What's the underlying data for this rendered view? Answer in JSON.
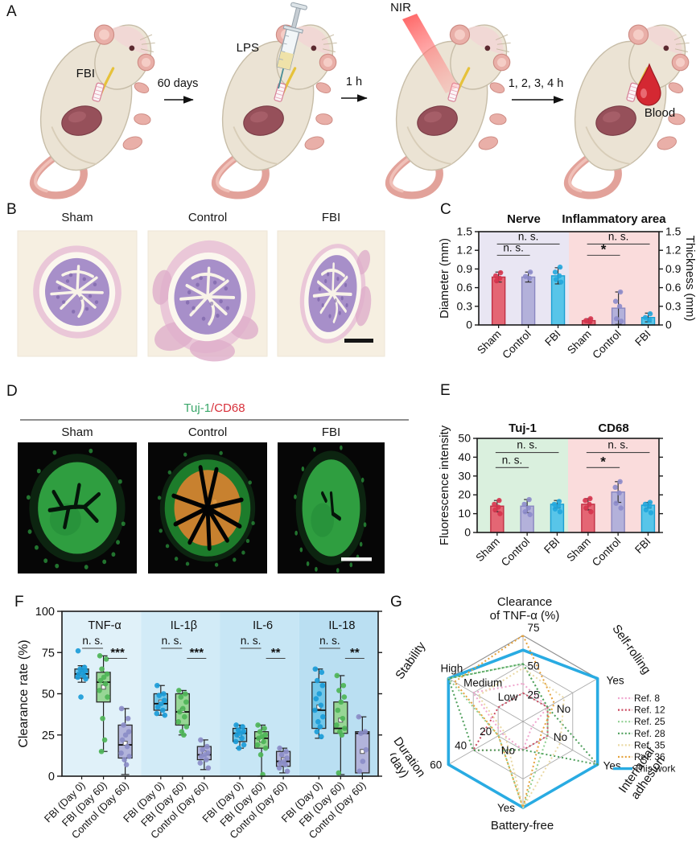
{
  "panelA": {
    "label": "A",
    "device_label": "FBI",
    "injection_label": "LPS",
    "laser_label": "NIR",
    "blood_label": "Blood",
    "arrow_labels": [
      "60 days",
      "1 h",
      "1, 2, 3, 4 h"
    ]
  },
  "panelB": {
    "label": "B",
    "image_titles": [
      "Sham",
      "Control",
      "FBI"
    ]
  },
  "panelD": {
    "label": "D",
    "title_green": "Tuj-1",
    "title_red": "/CD68",
    "image_titles": [
      "Sham",
      "Control",
      "FBI"
    ]
  },
  "panelC_label": "C",
  "panelE_label": "E",
  "panelF_label": "F",
  "panelG_label": "G",
  "chart_data": [
    {
      "id": "panelC",
      "type": "bar",
      "ylabel_left": "Diameter (mm)",
      "ylabel_right": "Thickness (mm)",
      "ylim": [
        0,
        1.5
      ],
      "yticks": [
        "0",
        "0.3",
        "0.6",
        "0.9",
        "1.2",
        "1.5"
      ],
      "bar_fill": [
        "#e46674",
        "#b3b1da",
        "#58c5e9"
      ],
      "bar_edge": [
        "#c02f44",
        "#8a87c0",
        "#1b9fd2"
      ],
      "dot_color": [
        "#d6334d",
        "#8d8ccb",
        "#22a6dd"
      ],
      "sig_y": [
        1.12,
        1.3
      ],
      "groups": [
        {
          "title": "Nerve",
          "title_color": "#b93fe0",
          "bg": "#e9e6f3",
          "categories": [
            "Sham",
            "Control",
            "FBI"
          ],
          "values": [
            0.77,
            0.77,
            0.79
          ],
          "errors": [
            0.08,
            0.08,
            0.13
          ],
          "points": [
            [
              0.84,
              0.79,
              0.75,
              0.71
            ],
            [
              0.85,
              0.78,
              0.75
            ],
            [
              0.93,
              0.85,
              0.79,
              0.73,
              0.69
            ]
          ],
          "sig": [
            {
              "a": 0,
              "b": 1,
              "label": "n. s."
            },
            {
              "a": 0,
              "b": 2,
              "label": "n. s."
            }
          ]
        },
        {
          "title": "Inflammatory area",
          "title_color": "#e23340",
          "bg": "#fadcdc",
          "categories": [
            "Sham",
            "Control",
            "FBI"
          ],
          "values": [
            0.07,
            0.27,
            0.12
          ],
          "errors": [
            0.03,
            0.26,
            0.07
          ],
          "points": [
            [
              0.1,
              0.07,
              0.05
            ],
            [
              0.53,
              0.38,
              0.3,
              0.1,
              0.06
            ],
            [
              0.18,
              0.12,
              0.08
            ]
          ],
          "sig": [
            {
              "a": 0,
              "b": 1,
              "label": "*"
            },
            {
              "a": 0,
              "b": 2,
              "label": "n. s."
            }
          ]
        }
      ]
    },
    {
      "id": "panelE",
      "type": "bar",
      "ylabel_left": "Fluorescence intensity",
      "ylim": [
        0,
        50
      ],
      "yticks": [
        "0",
        "10",
        "20",
        "30",
        "40",
        "50"
      ],
      "bar_fill": [
        "#e46674",
        "#b3b1da",
        "#58c5e9"
      ],
      "bar_edge": [
        "#c02f44",
        "#8a87c0",
        "#1b9fd2"
      ],
      "dot_color": [
        "#d6334d",
        "#8d8ccb",
        "#22a6dd"
      ],
      "sig_y": [
        34.5,
        42.5
      ],
      "groups": [
        {
          "title": "Tuj-1",
          "title_color": "#3aa76a",
          "bg": "#daf0de",
          "categories": [
            "Sham",
            "Control",
            "FBI"
          ],
          "values": [
            14,
            14,
            15
          ],
          "errors": [
            3,
            3.5,
            2
          ],
          "points": [
            [
              17,
              15,
              13.5,
              12,
              10
            ],
            [
              17.5,
              15,
              13,
              11,
              9.5
            ],
            [
              16.5,
              15,
              14,
              12.5,
              11
            ]
          ],
          "sig": [
            {
              "a": 0,
              "b": 1,
              "label": "n. s."
            },
            {
              "a": 0,
              "b": 2,
              "label": "n. s."
            }
          ]
        },
        {
          "title": "CD68",
          "title_color": "#e23340",
          "bg": "#fadcdc",
          "categories": [
            "Sham",
            "Control",
            "FBI"
          ],
          "values": [
            15,
            21.5,
            14.5
          ],
          "errors": [
            3,
            5.5,
            1.5
          ],
          "points": [
            [
              18,
              17,
              15,
              13,
              11
            ],
            [
              27,
              24,
              21,
              15.5,
              13
            ],
            [
              16,
              15,
              14,
              12,
              10.5
            ]
          ],
          "sig": [
            {
              "a": 0,
              "b": 1,
              "label": "*"
            },
            {
              "a": 0,
              "b": 2,
              "label": "n. s."
            }
          ]
        }
      ]
    },
    {
      "id": "panelF",
      "type": "box",
      "ylabel": "Clearance rate (%)",
      "ylim": [
        0,
        100
      ],
      "yticks": [
        "0",
        "25",
        "50",
        "75",
        "100"
      ],
      "categories": [
        "FBI (Day 0)",
        "FBI (Day 60)",
        "Control (Day 60)"
      ],
      "box_fill": [
        "#72c7e9",
        "#97d695",
        "#b2b4db"
      ],
      "dot_color": [
        "#1b9cd8",
        "#4eb557",
        "#8b8dc8"
      ],
      "groups": [
        {
          "title": "TNF-α",
          "bg": "#e0f1f9",
          "sig_ns": "n. s.",
          "sig_star": "***",
          "boxes": [
            {
              "whislo": 57,
              "q1": 59.5,
              "med": 62,
              "q3": 65,
              "whishi": 67,
              "mean": 62,
              "points": [
                76,
                66,
                65,
                64,
                63,
                62,
                61,
                60,
                59,
                48
              ]
            },
            {
              "whislo": 15,
              "q1": 45,
              "med": 57,
              "q3": 63,
              "whishi": 73,
              "mean": 54,
              "points": [
                73,
                71,
                65,
                62,
                60,
                58,
                56,
                52,
                48,
                35,
                22,
                15
              ]
            },
            {
              "whislo": 1,
              "q1": 11,
              "med": 19,
              "q3": 31,
              "whishi": 41,
              "mean": 20,
              "points": [
                41,
                35,
                31,
                27,
                25,
                22,
                18,
                14,
                12,
                10,
                7
              ]
            }
          ]
        },
        {
          "title": "IL-1β",
          "bg": "#d2ebf7",
          "sig_ns": "n. s.",
          "sig_star": "***",
          "boxes": [
            {
              "whislo": 37,
              "q1": 40,
              "med": 44,
              "q3": 50,
              "whishi": 55,
              "mean": 45,
              "points": [
                55,
                50,
                49,
                46,
                44,
                42,
                40,
                38,
                37
              ]
            },
            {
              "whislo": 25,
              "q1": 31,
              "med": 39,
              "q3": 50,
              "whishi": 52,
              "mean": 40,
              "points": [
                52,
                50,
                48,
                45,
                41,
                39,
                36,
                33,
                30,
                27,
                25
              ]
            },
            {
              "whislo": 4,
              "q1": 10,
              "med": 13,
              "q3": 18,
              "whishi": 22,
              "mean": 14,
              "points": [
                22,
                18,
                16,
                14,
                13,
                12,
                10,
                8,
                5
              ]
            }
          ]
        },
        {
          "title": "IL-6",
          "bg": "#c7e6f5",
          "sig_ns": "n. s.",
          "sig_star": "**",
          "boxes": [
            {
              "whislo": 17,
              "q1": 21,
              "med": 26,
              "q3": 29,
              "whishi": 31,
              "mean": 25,
              "points": [
                31,
                30,
                28,
                27,
                26,
                25,
                23,
                21,
                19,
                17
              ]
            },
            {
              "whislo": 0,
              "q1": 17,
              "med": 23,
              "q3": 27,
              "whishi": 31,
              "mean": 22,
              "points": [
                31,
                29,
                27,
                25,
                24,
                23,
                21,
                19,
                17,
                13,
                1
              ]
            },
            {
              "whislo": 2,
              "q1": 6,
              "med": 9,
              "q3": 15,
              "whishi": 17,
              "mean": 10,
              "points": [
                17,
                15,
                13,
                11,
                9,
                8,
                7,
                5,
                3
              ]
            }
          ]
        },
        {
          "title": "IL-18",
          "bg": "#badff2",
          "sig_ns": "n. s.",
          "sig_star": "**",
          "boxes": [
            {
              "whislo": 23,
              "q1": 29,
              "med": 40,
              "q3": 57,
              "whishi": 65,
              "mean": 42,
              "points": [
                65,
                63,
                58,
                55,
                50,
                47,
                43,
                40,
                36,
                33,
                30,
                27,
                24
              ]
            },
            {
              "whislo": 1,
              "q1": 26,
              "med": 29,
              "q3": 45,
              "whishi": 61,
              "mean": 34,
              "points": [
                61,
                55,
                52,
                48,
                45,
                40,
                35,
                31,
                29,
                27,
                25,
                2
              ]
            },
            {
              "whislo": 0,
              "q1": 2,
              "med": 26,
              "q3": 27,
              "whishi": 36,
              "mean": 15,
              "points": [
                36,
                27,
                26,
                16,
                9,
                3
              ]
            }
          ]
        }
      ]
    },
    {
      "id": "panelG",
      "type": "radar",
      "axes": [
        {
          "title": "Clearance of TNF-α (%)",
          "title_lines": [
            "Clearance",
            "of TNF-α (%)"
          ],
          "ticks": [
            {
              "label": "75",
              "f": 1
            },
            {
              "label": "50",
              "f": 0.667
            },
            {
              "label": "25",
              "f": 0.333
            }
          ]
        },
        {
          "title": "Self-rolling",
          "ticks": [
            {
              "label": "Yes",
              "f": 1
            },
            {
              "label": "No",
              "f": 0.333
            }
          ]
        },
        {
          "title": "Interfacial adhesion",
          "title_lines": [
            "Interfacial",
            "adhesion"
          ],
          "ticks": [
            {
              "label": "Yes",
              "f": 1
            },
            {
              "label": "No",
              "f": 0.333
            }
          ]
        },
        {
          "title": "Battery-free",
          "ticks": [
            {
              "label": "Yes",
              "f": 1
            },
            {
              "label": "No",
              "f": 0.333
            }
          ]
        },
        {
          "title": "Duration (day)",
          "title_lines": [
            "Duration",
            "(day)"
          ],
          "ticks": [
            {
              "label": "60",
              "f": 1
            },
            {
              "label": "40",
              "f": 0.667
            },
            {
              "label": "20",
              "f": 0.333
            }
          ]
        },
        {
          "title": "Stability",
          "ticks": [
            {
              "label": "High",
              "f": 1
            },
            {
              "label": "Medium",
              "f": 0.667
            },
            {
              "label": "Low",
              "f": 0.333
            }
          ]
        }
      ],
      "series": [
        {
          "name": "Ref. 8",
          "color": "#f0a6ce",
          "style": "dotted",
          "values": [
            0.44,
            0.33,
            0.12,
            0.33,
            0.28,
            0.67
          ]
        },
        {
          "name": "Ref. 12",
          "color": "#cc4a60",
          "style": "dotted",
          "values": [
            0.33,
            0.33,
            0.33,
            0.33,
            0.67,
            0.33
          ]
        },
        {
          "name": "Ref. 25",
          "color": "#90d092",
          "style": "dotted",
          "values": [
            0.67,
            0.33,
            0.33,
            1,
            0.33,
            1
          ]
        },
        {
          "name": "Ref. 28",
          "color": "#4f9f5c",
          "style": "dotted",
          "values": [
            0.67,
            0.33,
            1,
            0.33,
            0.67,
            1
          ]
        },
        {
          "name": "Ref. 35",
          "color": "#ead9a4",
          "style": "dotted",
          "values": [
            0.62,
            0.55,
            0.5,
            1,
            0.25,
            0.6
          ]
        },
        {
          "name": "Ref. 36",
          "color": "#e5a33e",
          "style": "dotted",
          "values": [
            1,
            0.42,
            0.25,
            1,
            0.33,
            0.92
          ]
        },
        {
          "name": "This work",
          "color": "#29abe2",
          "style": "solid",
          "values": [
            0.83,
            1,
            1,
            1,
            1,
            1
          ]
        }
      ]
    }
  ]
}
